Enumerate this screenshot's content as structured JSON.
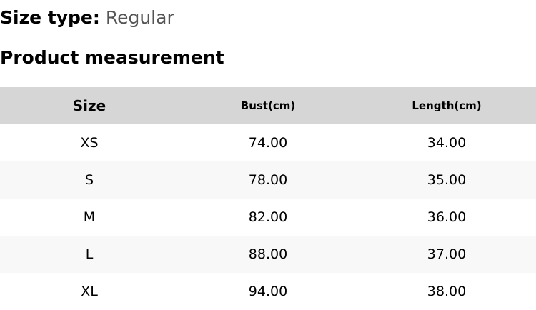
{
  "size_type": {
    "label": "Size type:",
    "value": "Regular"
  },
  "title": "Product measurement",
  "table": {
    "headers": [
      "Size",
      "Bust(cm)",
      "Length(cm)"
    ],
    "rows": [
      [
        "XS",
        "74.00",
        "34.00"
      ],
      [
        "S",
        "78.00",
        "35.00"
      ],
      [
        "M",
        "82.00",
        "36.00"
      ],
      [
        "L",
        "88.00",
        "37.00"
      ],
      [
        "XL",
        "94.00",
        "38.00"
      ]
    ]
  }
}
